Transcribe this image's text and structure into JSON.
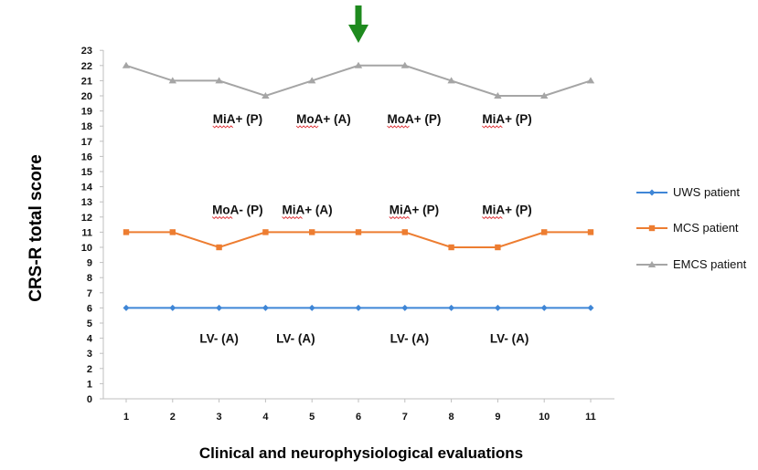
{
  "chart_data": {
    "type": "line",
    "title": "",
    "xlabel": "Clinical and neurophysiological evaluations",
    "ylabel": "CRS-R total score",
    "categories": [
      1,
      2,
      3,
      4,
      5,
      6,
      7,
      8,
      9,
      10,
      11
    ],
    "ylim": [
      0,
      23
    ],
    "yticks": [
      0,
      1,
      2,
      3,
      4,
      5,
      6,
      7,
      8,
      9,
      10,
      11,
      12,
      13,
      14,
      15,
      16,
      17,
      18,
      19,
      20,
      21,
      22,
      23
    ],
    "grid": false,
    "legend_position": "right",
    "series": [
      {
        "name": "UWS patient",
        "color": "#3f86d6",
        "marker": "diamond",
        "values": [
          6,
          6,
          6,
          6,
          6,
          6,
          6,
          6,
          6,
          6,
          6
        ]
      },
      {
        "name": "MCS patient",
        "color": "#ed7d31",
        "marker": "square",
        "values": [
          11,
          11,
          10,
          11,
          11,
          11,
          11,
          10,
          10,
          11,
          11
        ]
      },
      {
        "name": "EMCS patient",
        "color": "#a5a5a5",
        "marker": "triangle",
        "values": [
          22,
          21,
          21,
          20,
          21,
          22,
          22,
          21,
          20,
          20,
          21
        ]
      }
    ],
    "annotations": [
      {
        "text": "MiA+ (P)",
        "x": 3.4,
        "y": 18.5,
        "underline": "MiA"
      },
      {
        "text": "MoA+ (A)",
        "x": 5.25,
        "y": 18.5,
        "underline": "MoA"
      },
      {
        "text": "MoA+ (P)",
        "x": 7.2,
        "y": 18.5,
        "underline": "MoA"
      },
      {
        "text": "MiA+ (P)",
        "x": 9.2,
        "y": 18.5,
        "underline": "MiA"
      },
      {
        "text": "MoA- (P)",
        "x": 3.4,
        "y": 12.5,
        "underline": "MoA"
      },
      {
        "text": "MiA+ (A)",
        "x": 4.9,
        "y": 12.5,
        "underline": "MiA"
      },
      {
        "text": "MiA+ (P)",
        "x": 7.2,
        "y": 12.5,
        "underline": "MiA"
      },
      {
        "text": "MiA+ (P)",
        "x": 9.2,
        "y": 12.5,
        "underline": "MiA"
      },
      {
        "text": "LV- (A)",
        "x": 3.0,
        "y": 4.0,
        "underline": ""
      },
      {
        "text": "LV- (A)",
        "x": 4.65,
        "y": 4.0,
        "underline": ""
      },
      {
        "text": "LV- (A)",
        "x": 7.1,
        "y": 4.0,
        "underline": ""
      },
      {
        "text": "LV- (A)",
        "x": 9.25,
        "y": 4.0,
        "underline": ""
      }
    ],
    "marker_arrow": {
      "x": 6,
      "color": "#1e8a1e",
      "icon": "down-arrow-icon"
    }
  }
}
